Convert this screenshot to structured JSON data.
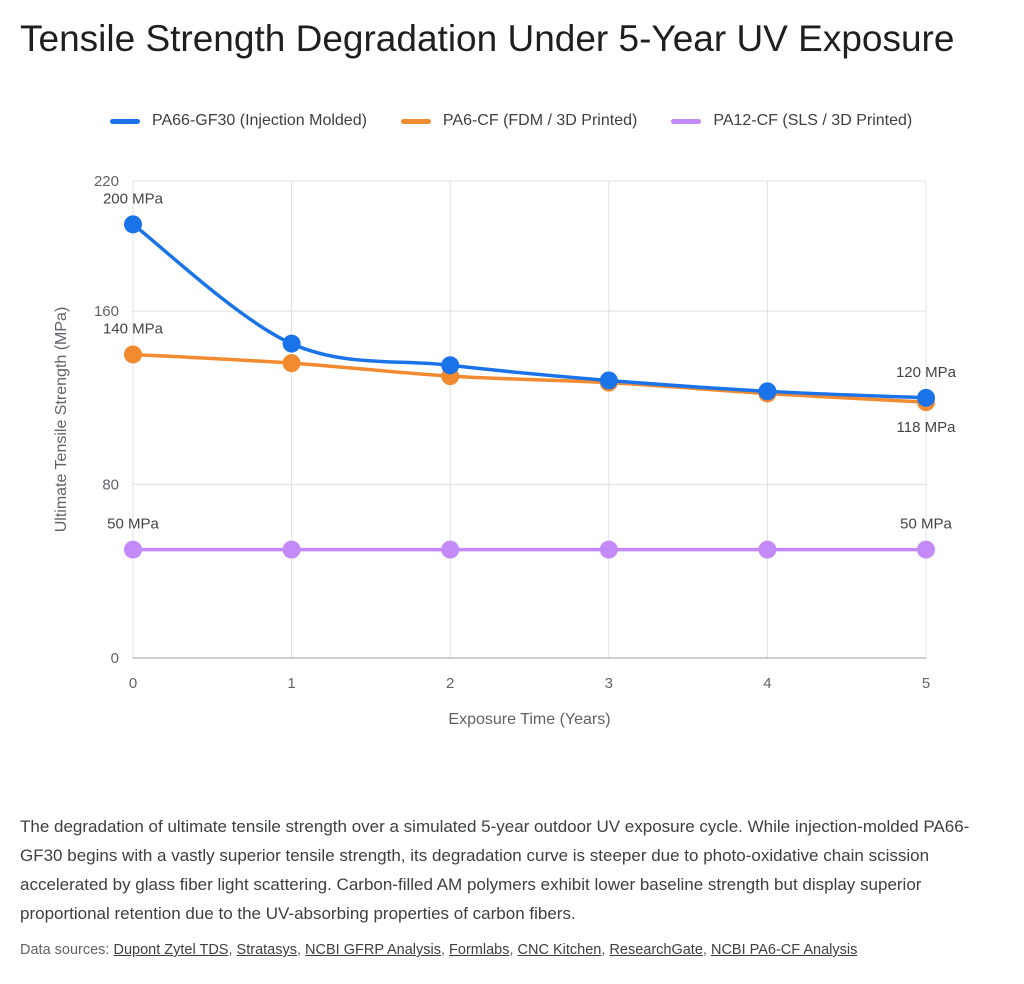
{
  "chart_data": {
    "type": "line",
    "title": "Tensile Strength Degradation Under 5-Year UV Exposure",
    "xlabel": "Exposure Time (Years)",
    "ylabel": "Ultimate Tensile Strength (MPa)",
    "x": [
      0,
      1,
      2,
      3,
      4,
      5
    ],
    "xlim": [
      0,
      5
    ],
    "ylim": [
      0,
      220
    ],
    "yticks": [
      0,
      80,
      160,
      220
    ],
    "grid": true,
    "legend_position": "top",
    "series": [
      {
        "name": "PA66-GF30 (Injection Molded)",
        "color": "#1a73e8",
        "smooth": true,
        "values": [
          200,
          145,
          135,
          128,
          123,
          120
        ],
        "labels": [
          {
            "index": 0,
            "text": "200 MPa",
            "position": "above"
          },
          {
            "index": 5,
            "text": "120 MPa",
            "position": "above"
          }
        ]
      },
      {
        "name": "PA6-CF (FDM / 3D Printed)",
        "color": "#f28b30",
        "smooth": true,
        "values": [
          140,
          136,
          130,
          127,
          122,
          118
        ],
        "labels": [
          {
            "index": 0,
            "text": "140 MPa",
            "position": "above"
          },
          {
            "index": 5,
            "text": "118 MPa",
            "position": "below"
          }
        ]
      },
      {
        "name": "PA12-CF (SLS / 3D Printed)",
        "color": "#c58af9",
        "smooth": false,
        "values": [
          50,
          50,
          50,
          50,
          50,
          50
        ],
        "labels": [
          {
            "index": 0,
            "text": "50 MPa",
            "position": "above"
          },
          {
            "index": 5,
            "text": "50 MPa",
            "position": "above"
          }
        ]
      }
    ]
  },
  "caption": "The degradation of ultimate tensile strength over a simulated 5-year outdoor UV exposure cycle. While injection-molded PA66-GF30 begins with a vastly superior tensile strength, its degradation curve is steeper due to photo-oxidative chain scission accelerated by glass fiber light scattering. Carbon-filled AM polymers exhibit lower baseline strength but display superior proportional retention due to the UV-absorbing properties of carbon fibers.",
  "sources": {
    "prefix": "Data sources:",
    "links": [
      "Dupont Zytel TDS",
      "Stratasys",
      "NCBI GFRP Analysis",
      "Formlabs",
      "CNC Kitchen",
      "ResearchGate",
      "NCBI PA6-CF Analysis"
    ]
  }
}
